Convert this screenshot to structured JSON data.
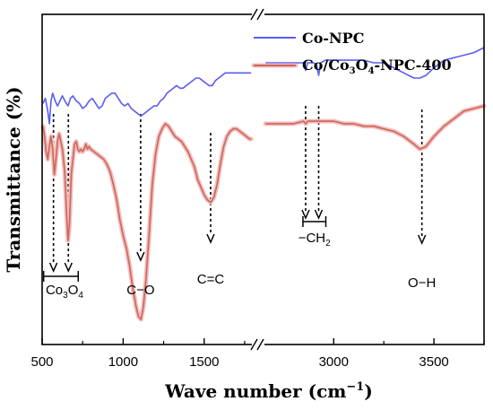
{
  "chart_data": {
    "type": "line",
    "xlabel_prefix": "Wave number (cm",
    "xlabel_sup": "−1",
    "xlabel_suffix": ")",
    "ylabel": "Transmittance (%)",
    "x_ticks": [
      "500",
      "1000",
      "1500",
      "3000",
      "3500"
    ],
    "xlim_left": [
      500,
      1800
    ],
    "xlim_right": [
      2650,
      3750
    ],
    "colors": {
      "co_npc": "#5a5ef0",
      "co3o4": "#c8685c",
      "halo": "#f5bcbc",
      "arrow": "#000000"
    },
    "legend": [
      {
        "label": "Co-NPC",
        "series": "co_npc"
      },
      {
        "label": "Co/Co3O4-NPC-400",
        "label_parts": [
          "Co/Co",
          "3",
          "O",
          "4",
          "-NPC-400"
        ],
        "series": "co3o4"
      }
    ],
    "series": [
      {
        "name": "Co-NPC",
        "key": "co_npc",
        "left": [
          [
            505,
            88
          ],
          [
            520,
            86
          ],
          [
            535,
            91
          ],
          [
            545,
            96
          ],
          [
            555,
            87
          ],
          [
            565,
            84
          ],
          [
            580,
            87
          ],
          [
            595,
            89
          ],
          [
            610,
            87
          ],
          [
            625,
            85
          ],
          [
            640,
            87
          ],
          [
            660,
            89
          ],
          [
            675,
            86
          ],
          [
            690,
            85
          ],
          [
            710,
            87
          ],
          [
            730,
            88
          ],
          [
            750,
            90
          ],
          [
            770,
            89
          ],
          [
            790,
            87
          ],
          [
            810,
            86
          ],
          [
            830,
            88
          ],
          [
            850,
            90
          ],
          [
            870,
            89
          ],
          [
            890,
            86
          ],
          [
            910,
            85
          ],
          [
            930,
            84
          ],
          [
            950,
            84
          ],
          [
            970,
            86
          ],
          [
            990,
            88
          ],
          [
            1010,
            89
          ],
          [
            1030,
            88
          ],
          [
            1050,
            90
          ],
          [
            1070,
            91
          ],
          [
            1090,
            92
          ],
          [
            1110,
            93
          ],
          [
            1130,
            92
          ],
          [
            1150,
            91
          ],
          [
            1170,
            90
          ],
          [
            1190,
            89
          ],
          [
            1210,
            89
          ],
          [
            1230,
            87
          ],
          [
            1250,
            86
          ],
          [
            1270,
            84
          ],
          [
            1290,
            83
          ],
          [
            1310,
            82
          ],
          [
            1330,
            81
          ],
          [
            1350,
            82
          ],
          [
            1370,
            82
          ],
          [
            1390,
            81
          ],
          [
            1410,
            80
          ],
          [
            1430,
            79
          ],
          [
            1450,
            78
          ],
          [
            1470,
            78
          ],
          [
            1490,
            79
          ],
          [
            1510,
            80
          ],
          [
            1530,
            81
          ],
          [
            1550,
            81
          ],
          [
            1570,
            79
          ],
          [
            1590,
            78
          ],
          [
            1610,
            77
          ],
          [
            1630,
            76
          ],
          [
            1650,
            76
          ],
          [
            1670,
            76
          ],
          [
            1690,
            76
          ],
          [
            1710,
            76
          ],
          [
            1730,
            76
          ],
          [
            1750,
            76
          ],
          [
            1770,
            76
          ],
          [
            1790,
            76
          ]
        ],
        "right": [
          [
            2660,
            72
          ],
          [
            2700,
            72
          ],
          [
            2750,
            72
          ],
          [
            2800,
            72
          ],
          [
            2850,
            72
          ],
          [
            2860,
            75
          ],
          [
            2870,
            72
          ],
          [
            2900,
            72
          ],
          [
            2915,
            73
          ],
          [
            2925,
            77
          ],
          [
            2935,
            72
          ],
          [
            2960,
            71
          ],
          [
            3000,
            71
          ],
          [
            3050,
            71
          ],
          [
            3100,
            71
          ],
          [
            3150,
            71
          ],
          [
            3200,
            72
          ],
          [
            3250,
            72
          ],
          [
            3300,
            74
          ],
          [
            3350,
            76
          ],
          [
            3400,
            78
          ],
          [
            3430,
            78
          ],
          [
            3460,
            77
          ],
          [
            3500,
            74
          ],
          [
            3550,
            71
          ],
          [
            3600,
            70
          ],
          [
            3650,
            69
          ],
          [
            3700,
            68
          ],
          [
            3750,
            66
          ]
        ]
      },
      {
        "name": "Co/Co3O4-NPC-400",
        "key": "co3o4",
        "left": [
          [
            505,
            97
          ],
          [
            515,
            101
          ],
          [
            525,
            107
          ],
          [
            535,
            110
          ],
          [
            545,
            105
          ],
          [
            555,
            101
          ],
          [
            565,
            106
          ],
          [
            575,
            116
          ],
          [
            585,
            110
          ],
          [
            595,
            103
          ],
          [
            605,
            100
          ],
          [
            615,
            103
          ],
          [
            625,
            106
          ],
          [
            640,
            115
          ],
          [
            650,
            130
          ],
          [
            660,
            142
          ],
          [
            668,
            136
          ],
          [
            680,
            116
          ],
          [
            690,
            110
          ],
          [
            700,
            104
          ],
          [
            710,
            103
          ],
          [
            720,
            106
          ],
          [
            730,
            107
          ],
          [
            740,
            106
          ],
          [
            750,
            107
          ],
          [
            760,
            106
          ],
          [
            770,
            104
          ],
          [
            780,
            106
          ],
          [
            790,
            105
          ],
          [
            800,
            106
          ],
          [
            820,
            107
          ],
          [
            840,
            108
          ],
          [
            860,
            109
          ],
          [
            880,
            110
          ],
          [
            900,
            112
          ],
          [
            920,
            115
          ],
          [
            940,
            120
          ],
          [
            960,
            126
          ],
          [
            980,
            134
          ],
          [
            1000,
            140
          ],
          [
            1020,
            145
          ],
          [
            1040,
            152
          ],
          [
            1060,
            161
          ],
          [
            1080,
            168
          ],
          [
            1095,
            172
          ],
          [
            1110,
            173
          ],
          [
            1125,
            168
          ],
          [
            1140,
            158
          ],
          [
            1160,
            140
          ],
          [
            1180,
            120
          ],
          [
            1200,
            108
          ],
          [
            1220,
            101
          ],
          [
            1240,
            98
          ],
          [
            1260,
            96
          ],
          [
            1280,
            97
          ],
          [
            1300,
            99
          ],
          [
            1320,
            101
          ],
          [
            1340,
            102
          ],
          [
            1360,
            103
          ],
          [
            1380,
            105
          ],
          [
            1400,
            107
          ],
          [
            1420,
            110
          ],
          [
            1440,
            113
          ],
          [
            1460,
            118
          ],
          [
            1480,
            121
          ],
          [
            1500,
            124
          ],
          [
            1520,
            126
          ],
          [
            1540,
            127
          ],
          [
            1560,
            125
          ],
          [
            1580,
            120
          ],
          [
            1600,
            112
          ],
          [
            1620,
            105
          ],
          [
            1640,
            101
          ],
          [
            1660,
            99
          ],
          [
            1680,
            98
          ],
          [
            1700,
            98
          ],
          [
            1720,
            99
          ],
          [
            1740,
            100
          ],
          [
            1760,
            101
          ],
          [
            1780,
            102
          ],
          [
            1790,
            102
          ]
        ],
        "right": [
          [
            2660,
            96
          ],
          [
            2700,
            96
          ],
          [
            2750,
            96
          ],
          [
            2800,
            96
          ],
          [
            2850,
            95
          ],
          [
            2860,
            96
          ],
          [
            2870,
            95
          ],
          [
            2900,
            95
          ],
          [
            2925,
            95
          ],
          [
            2950,
            95
          ],
          [
            3000,
            95
          ],
          [
            3050,
            96
          ],
          [
            3100,
            96
          ],
          [
            3150,
            97
          ],
          [
            3200,
            97
          ],
          [
            3250,
            98
          ],
          [
            3300,
            99
          ],
          [
            3350,
            101
          ],
          [
            3400,
            104
          ],
          [
            3430,
            106
          ],
          [
            3460,
            105
          ],
          [
            3500,
            101
          ],
          [
            3550,
            97
          ],
          [
            3600,
            94
          ],
          [
            3650,
            91
          ],
          [
            3700,
            90
          ],
          [
            3750,
            89
          ]
        ]
      }
    ],
    "annotations": [
      {
        "label": "C−O",
        "x": 1108
      },
      {
        "label": "C=C",
        "x": 1540
      },
      {
        "label": "O−H",
        "x": 3440
      }
    ],
    "bracket_co3o4": {
      "label_parts": [
        "Co",
        "3",
        "O",
        "4"
      ],
      "x": [
        570,
        662
      ]
    },
    "bracket_ch2": {
      "label_parts": [
        "−CH",
        "2"
      ],
      "x": [
        2860,
        2925
      ]
    },
    "axis_break": "//"
  }
}
